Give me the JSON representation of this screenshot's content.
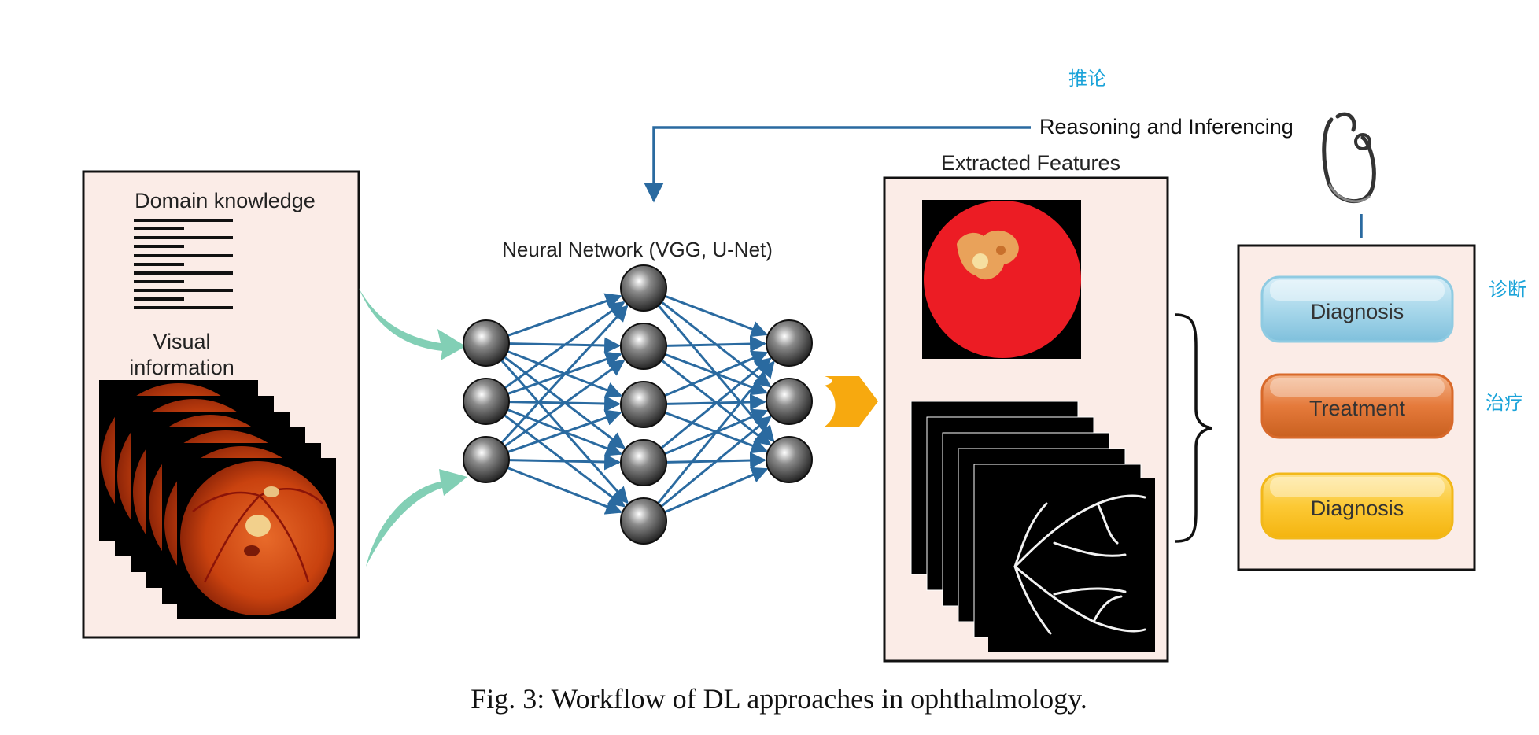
{
  "panel_left": {
    "domain_title": "Domain knowledge",
    "visual_line1": "Visual",
    "visual_line2": "information"
  },
  "network": {
    "title": "Neural Network (VGG, U-Net)",
    "layers": [
      3,
      5,
      3
    ]
  },
  "feedback": {
    "label": "Reasoning and Inferencing",
    "annotation_cn": "推论"
  },
  "features": {
    "title": "Extracted Features"
  },
  "outcomes": {
    "items": [
      {
        "label": "Diagnosis",
        "annotation_cn": "诊断"
      },
      {
        "label": "Treatment",
        "annotation_cn": "治疗"
      },
      {
        "label": "Diagnosis",
        "annotation_cn": ""
      }
    ]
  },
  "caption": "Fig. 3: Workflow of DL approaches in ophthalmology.",
  "colors": {
    "panel_bg": "#fbece7",
    "network_edge": "#2a6aa0",
    "feedback_line": "#2a6aa0",
    "green_arrow": "#82cfb5",
    "orange_arrow": "#f7a90f",
    "annotation": "#1aa3d9",
    "fundus_red": "#ec1c24",
    "btn_blue": "#a9d8eb",
    "btn_orange": "#e57a3b",
    "btn_yellow": "#fcc935"
  },
  "icons": [
    "stethoscope-icon",
    "fundus-image",
    "vessel-segmentation-image"
  ]
}
